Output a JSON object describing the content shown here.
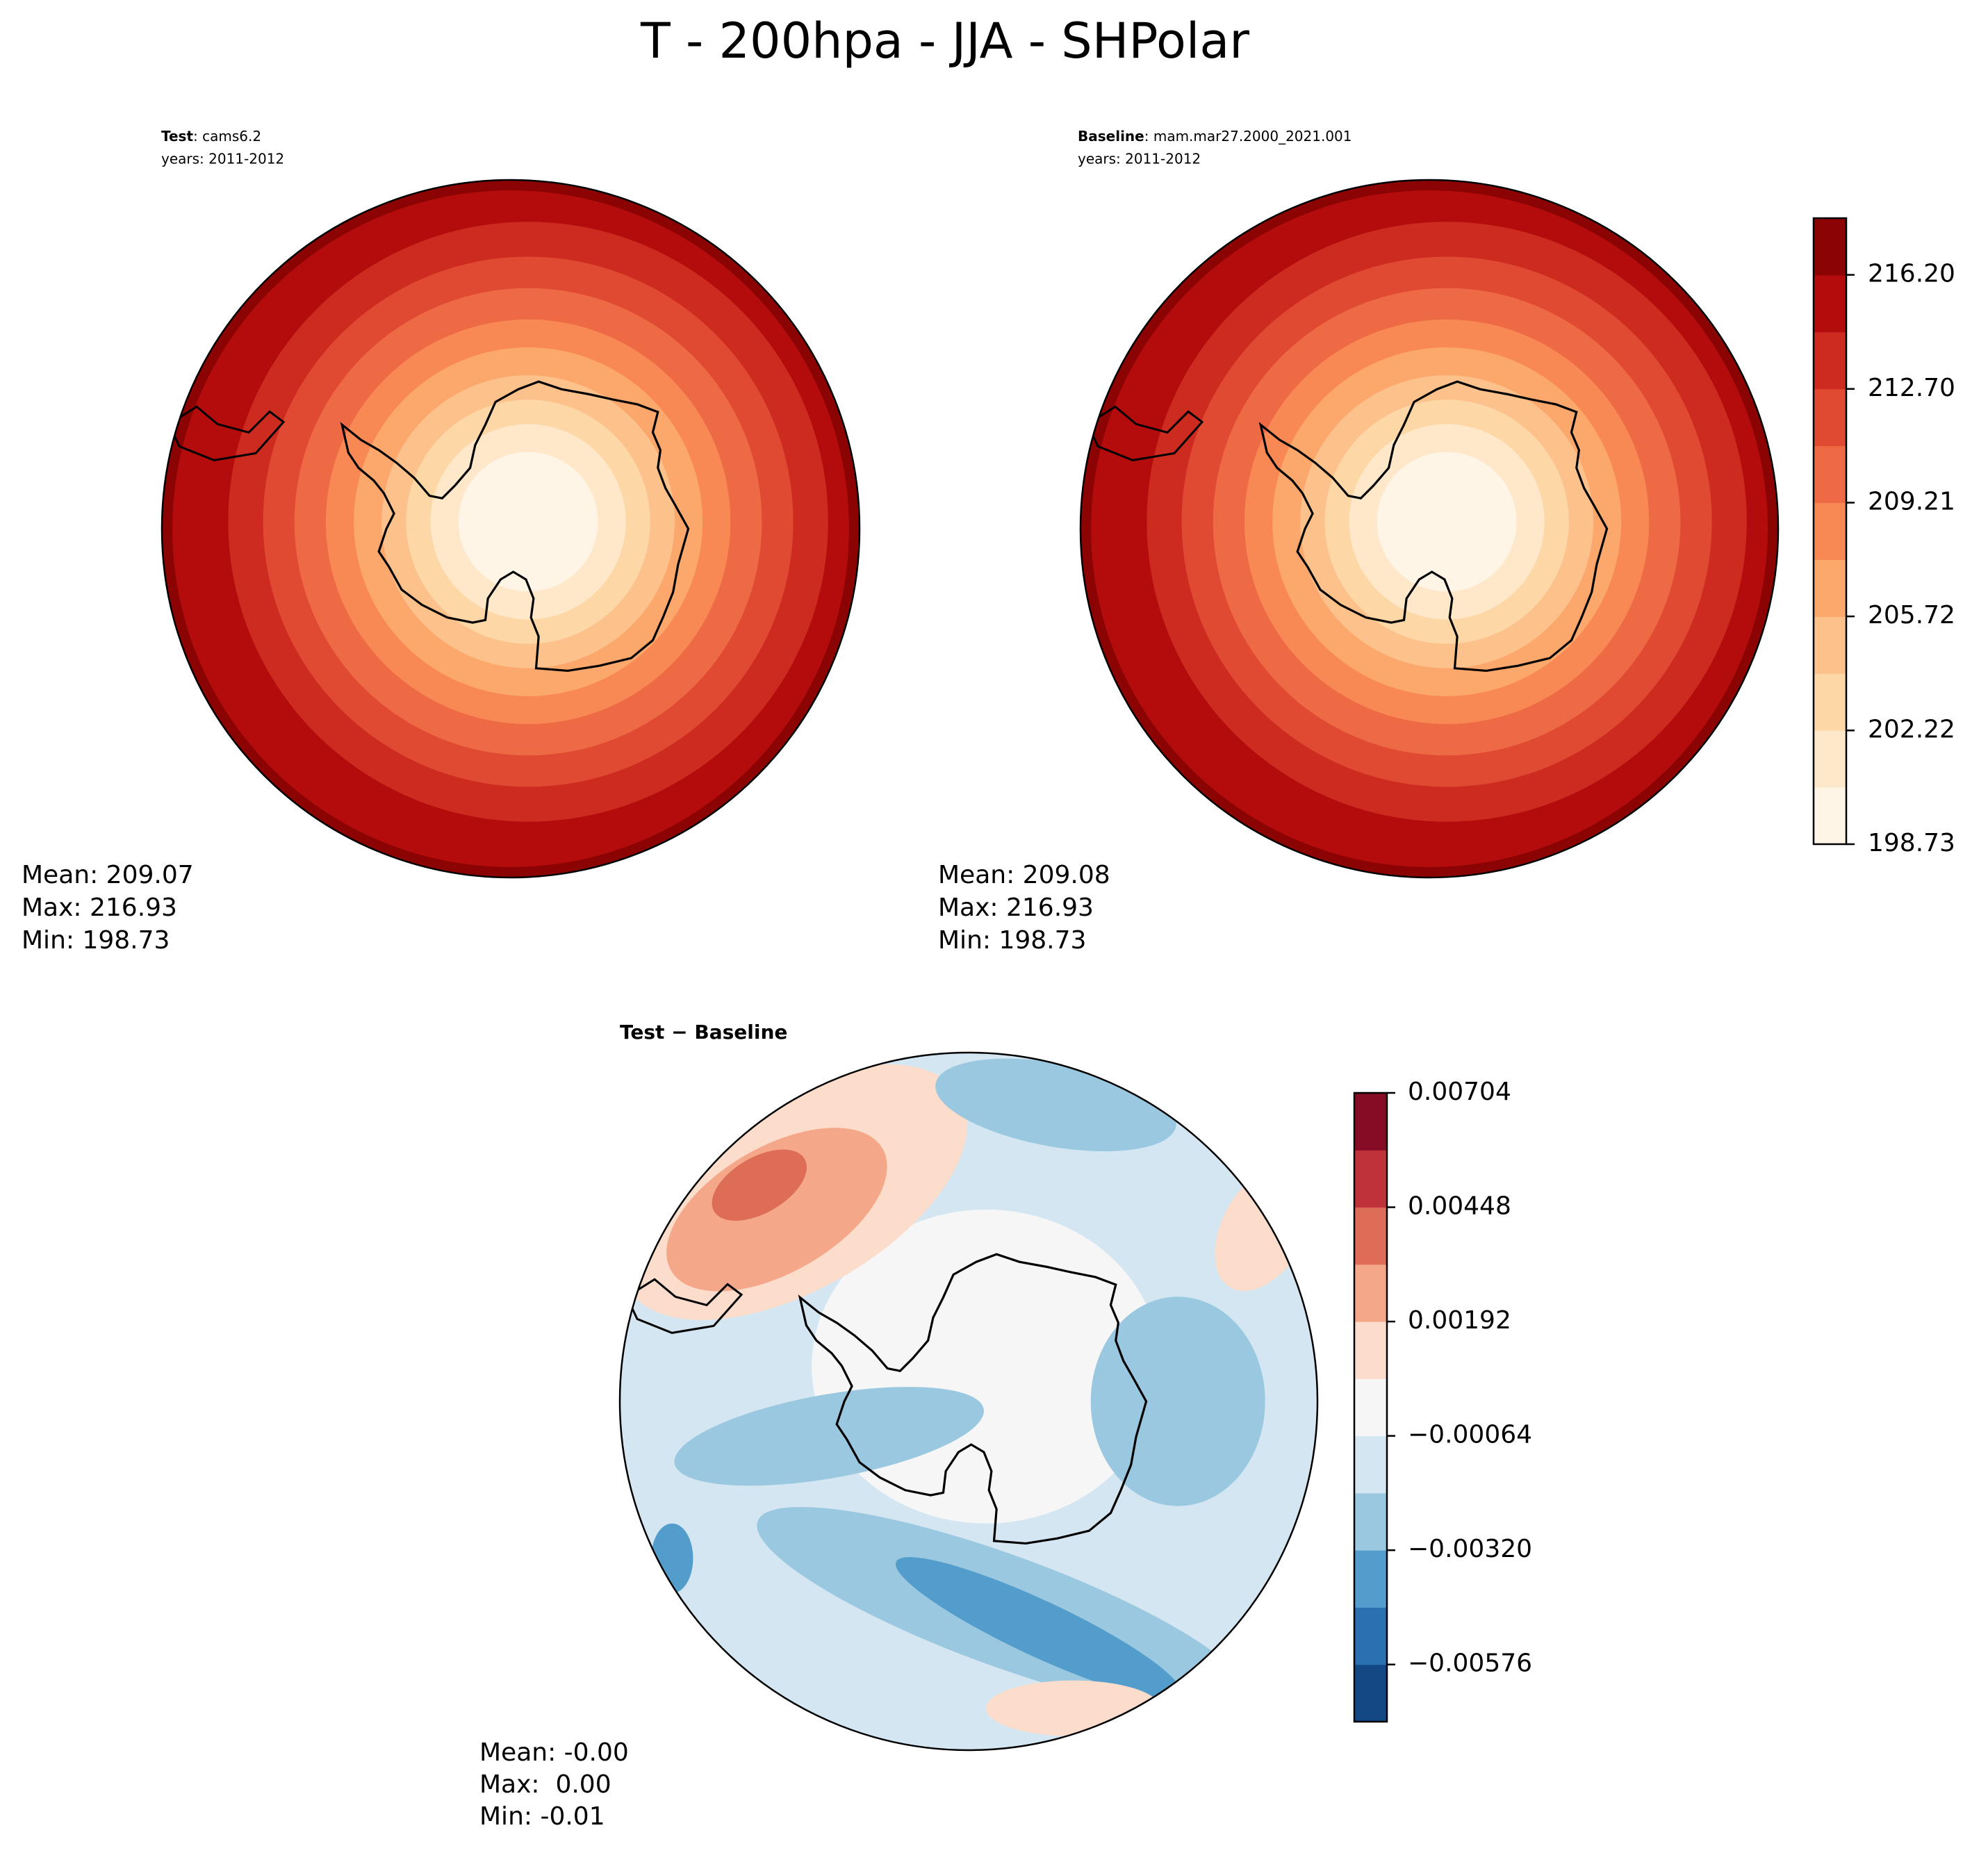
{
  "title": "T - 200hpa - JJA - SHPolar",
  "chart_data": [
    {
      "type": "contour",
      "label": "Test",
      "name": ": cams6.2",
      "years": "years: 2011-2012",
      "stats": [
        "Mean: 209.07",
        "Max: 216.93",
        "Min: 198.73"
      ]
    },
    {
      "type": "contour",
      "label": "Baseline",
      "name": ": mam.mar27.2000_2021.001",
      "years": "years: 2011-2012",
      "stats": [
        "Mean: 209.08",
        "Max: 216.93",
        "Min: 198.73"
      ],
      "colorbar": {
        "colors": [
          "#fff5e7",
          "#ffe8c9",
          "#fdd7a6",
          "#fdc18b",
          "#fca76c",
          "#f88954",
          "#ee6a45",
          "#e04a33",
          "#cd2b1f",
          "#b40c0c",
          "#8c0303"
        ],
        "lim": [
          198.73,
          217.94
        ],
        "ticks": [
          198.73,
          202.22,
          205.72,
          209.21,
          {
            "value": 212.7,
            "label": "212.70"
          },
          {
            "value": 216.2,
            "label": "216.20"
          }
        ]
      }
    },
    {
      "type": "contour",
      "title": "Test − Baseline",
      "stats": [
        "Mean: -0.00",
        "Max:  0.00",
        "Min: -0.01"
      ],
      "colorbar": {
        "colors": [
          "#124984",
          "#2a71b2",
          "#529dcc",
          "#9ac8e0",
          "#d3e6f1",
          "#f6f6f6",
          "#fcdcca",
          "#f5a889",
          "#de6d58",
          "#c0323a",
          "#860b24"
        ],
        "lim": [
          -0.00704,
          0.00704
        ],
        "ticks": [
          {
            "value": -0.00576,
            "label": "−0.00576"
          },
          {
            "value": -0.0032,
            "label": "−0.00320"
          },
          {
            "value": -0.00064,
            "label": "−0.00064"
          },
          0.00192,
          0.00448,
          0.00704
        ]
      }
    }
  ]
}
